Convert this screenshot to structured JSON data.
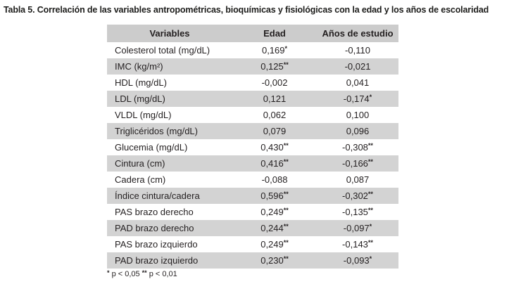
{
  "title": "Tabla 5. Correlación de las variables antropométricas, bioquímicas y fisiológicas con la edad y los años de escolaridad",
  "table": {
    "columns": [
      "Variables",
      "Edad",
      "Años de estudio"
    ],
    "rows": [
      {
        "variable": "Colesterol total (mg/dL)",
        "edad": "0,169",
        "edad_sig": "*",
        "anios": "-0,110",
        "anios_sig": ""
      },
      {
        "variable": "IMC (kg/m²)",
        "edad": "0,125",
        "edad_sig": "**",
        "anios": "-0,021",
        "anios_sig": ""
      },
      {
        "variable": "HDL (mg/dL)",
        "edad": "-0,002",
        "edad_sig": "",
        "anios": "0,041",
        "anios_sig": ""
      },
      {
        "variable": "LDL (mg/dL)",
        "edad": "0,121",
        "edad_sig": "",
        "anios": "-0,174",
        "anios_sig": "*"
      },
      {
        "variable": "VLDL (mg/dL)",
        "edad": "0,062",
        "edad_sig": "",
        "anios": "0,100",
        "anios_sig": ""
      },
      {
        "variable": "Triglicéridos (mg/dL)",
        "edad": "0,079",
        "edad_sig": "",
        "anios": "0,096",
        "anios_sig": ""
      },
      {
        "variable": "Glucemia (mg/dL)",
        "edad": "0,430",
        "edad_sig": "**",
        "anios": "-0,308",
        "anios_sig": "**"
      },
      {
        "variable": "Cintura (cm)",
        "edad": "0,416",
        "edad_sig": "**",
        "anios": "-0,166",
        "anios_sig": "**"
      },
      {
        "variable": "Cadera (cm)",
        "edad": "-0,088",
        "edad_sig": "",
        "anios": "0,087",
        "anios_sig": ""
      },
      {
        "variable": "Índice cintura/cadera",
        "edad": "0,596",
        "edad_sig": "**",
        "anios": "-0,302",
        "anios_sig": "**"
      },
      {
        "variable": "PAS brazo derecho",
        "edad": "0,249",
        "edad_sig": "**",
        "anios": "-0,135",
        "anios_sig": "**"
      },
      {
        "variable": "PAD brazo derecho",
        "edad": "0,244",
        "edad_sig": "**",
        "anios": "-0,097",
        "anios_sig": "*"
      },
      {
        "variable": "PAS brazo izquierdo",
        "edad": "0,249",
        "edad_sig": "**",
        "anios": "-0,143",
        "anios_sig": "**"
      },
      {
        "variable": "PAD brazo izquierdo",
        "edad": "0,230",
        "edad_sig": "**",
        "anios": "-0,093",
        "anios_sig": "*"
      }
    ]
  },
  "footnote": {
    "sig1": "*",
    "text1": "p < 0,05",
    "sig2": "**",
    "text2": "p < 0,01"
  },
  "colors": {
    "header_bg": "#cccccc",
    "stripe_bg": "#d3d3d3",
    "text": "#231f20"
  }
}
